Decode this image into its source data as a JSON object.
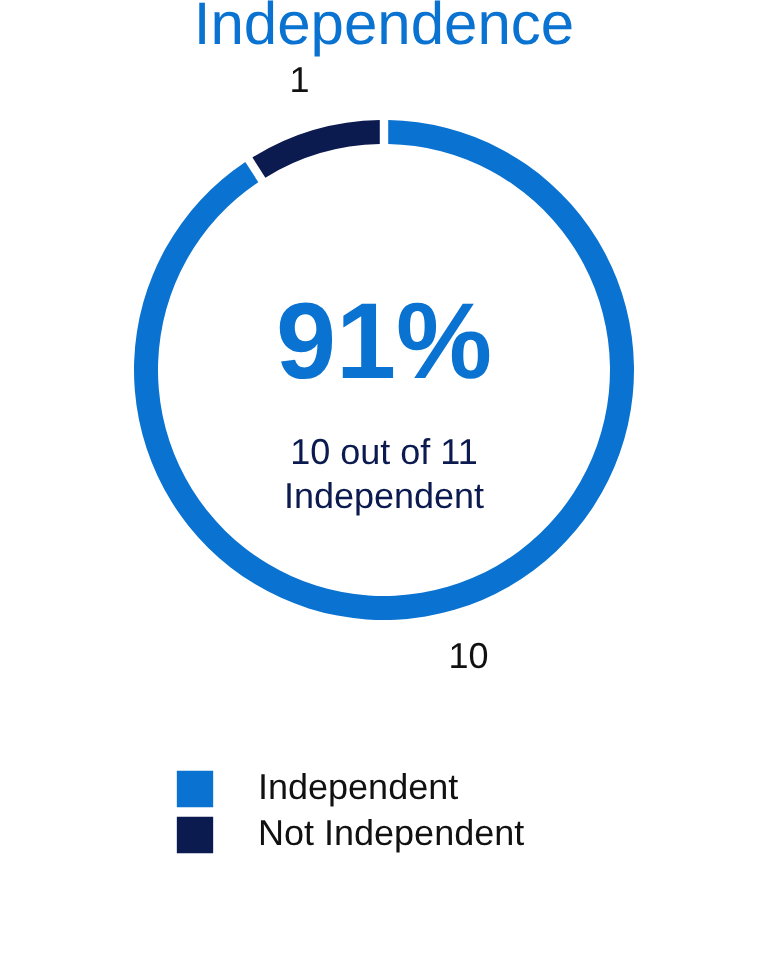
{
  "chart_data": {
    "type": "donut",
    "title": "Independence",
    "categories": [
      "Independent",
      "Not Independent"
    ],
    "values": [
      10,
      1
    ],
    "colors": [
      "#0a72d0",
      "#0b1a4f"
    ],
    "data_labels": true,
    "annotations": [
      "91%",
      "10 out of 11 Independent"
    ],
    "legend": "bottom"
  }
}
